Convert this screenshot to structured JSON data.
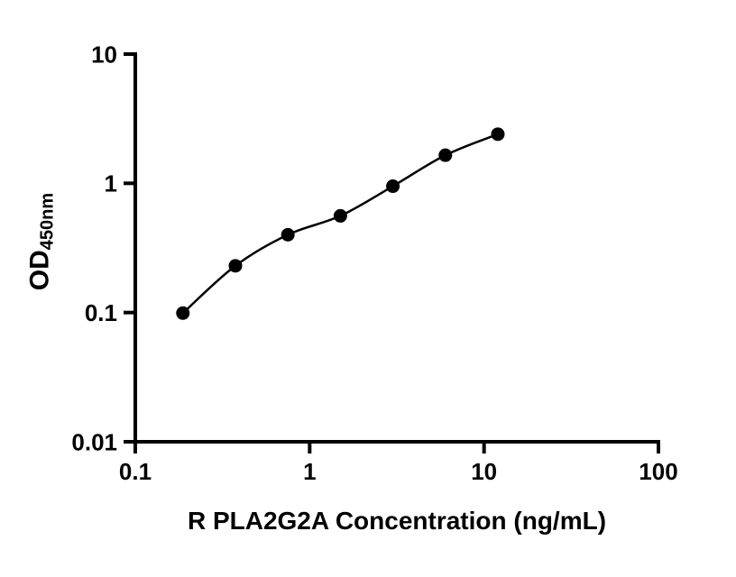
{
  "chart_data": {
    "type": "scatter",
    "title": "",
    "xlabel": "R PLA2G2A Concentration (ng/mL)",
    "ylabel_main": "OD",
    "ylabel_sub": "450nm",
    "x": [
      0.1875,
      0.375,
      0.75,
      1.5,
      3,
      6,
      12
    ],
    "y": [
      0.099,
      0.23,
      0.4,
      0.56,
      0.95,
      1.65,
      2.4
    ],
    "xscale": "log",
    "yscale": "log",
    "xlim": [
      0.1,
      100
    ],
    "ylim": [
      0.01,
      10
    ],
    "x_ticks": [
      {
        "value": 0.1,
        "label": "0.1"
      },
      {
        "value": 1,
        "label": "1"
      },
      {
        "value": 10,
        "label": "10"
      },
      {
        "value": 100,
        "label": "100"
      }
    ],
    "y_ticks": [
      {
        "value": 0.01,
        "label": "0.01"
      },
      {
        "value": 0.1,
        "label": "0.1"
      },
      {
        "value": 1,
        "label": "1"
      },
      {
        "value": 10,
        "label": "10"
      }
    ],
    "grid": false,
    "legend": "none",
    "marker_color": "#000000",
    "line_color": "#000000",
    "axis_color": "#000000",
    "fit_line": true
  }
}
